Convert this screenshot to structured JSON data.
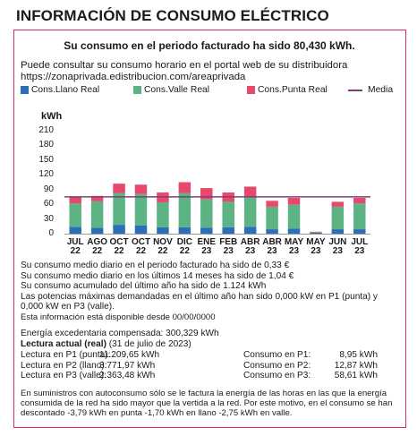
{
  "title": "INFORMACIÓN DE CONSUMO ELÉCTRICO",
  "headline": "Su consumo en el periodo facturado ha sido 80,430 kWh.",
  "portal_line1": "Puede consultar su consumo horario en el portal web de su distribuidora",
  "portal_line2": "https://zonaprivada.edistribucion.com/areaprivada",
  "colors": {
    "llano": "#2a6fb8",
    "valle": "#5eb384",
    "punta": "#e8486b",
    "media": "#7b3e7e",
    "frame": "#e0287a"
  },
  "chart_data": {
    "type": "bar",
    "stacked": true,
    "ylabel": "kWh",
    "ylim": [
      0,
      210
    ],
    "yticks": [
      0,
      30,
      60,
      90,
      120,
      150,
      180,
      210
    ],
    "categories": [
      [
        "JUL",
        "22"
      ],
      [
        "AGO",
        "22"
      ],
      [
        "OCT",
        "22"
      ],
      [
        "OCT",
        "22"
      ],
      [
        "NOV",
        "22"
      ],
      [
        "DIC",
        "22"
      ],
      [
        "ENE",
        "23"
      ],
      [
        "FEB",
        "23"
      ],
      [
        "ABR",
        "23"
      ],
      [
        "ABR",
        "23"
      ],
      [
        "MAY",
        "23"
      ],
      [
        "MAY",
        "23"
      ],
      [
        "JUN",
        "23"
      ],
      [
        "JUL",
        "23"
      ]
    ],
    "legend": [
      "Cons.Llano Real",
      "Cons.Valle Real",
      "Cons.Punta Real",
      "Media"
    ],
    "series": [
      {
        "name": "Cons.Llano Real",
        "values": [
          14,
          12,
          18,
          17,
          13,
          13,
          12,
          13,
          14,
          9,
          10,
          2,
          9,
          9
        ]
      },
      {
        "name": "Cons.Valle Real",
        "values": [
          48,
          54,
          65,
          64,
          51,
          70,
          58,
          52,
          60,
          46,
          49,
          1,
          46,
          53
        ]
      },
      {
        "name": "Cons.Punta Real",
        "values": [
          12,
          11,
          19,
          19,
          20,
          22,
          23,
          19,
          22,
          12,
          14,
          1,
          10,
          11
        ]
      }
    ],
    "media": 75
  },
  "info": {
    "line1": "Su consumo medio diario en el periodo facturado ha sido de 0,33 €",
    "line2": "Su consumo medio diario en los últimos 14 meses ha sido de 1,04 €",
    "line3": "Su consumo acumulado del último año ha sido de 1.124 kWh",
    "line4": "Las potencias máximas demandadas en el último año han sido 0,000 kW en P1 (punta) y",
    "line5": "0,000 kW en P3 (valle).",
    "line6": "Esta información está disponible desde 00/00/0000",
    "line7": "Energía excedentaria compensada: 300,329 kWh"
  },
  "lectura": {
    "title": "Lectura actual (real)",
    "date": " (31 de julio de 2023)",
    "rows": [
      {
        "label": "Lectura en P1 (punta):",
        "value": "11.209,65 kWh",
        "cons_label": "Consumo en P1:",
        "cons_value": "8,95 kWh"
      },
      {
        "label": "Lectura en P2 (llano):",
        "value": "3.771,97 kWh",
        "cons_label": "Consumo en P2:",
        "cons_value": "12,87 kWh"
      },
      {
        "label": "Lectura en P3 (valle):",
        "value": "2.363,48 kWh",
        "cons_label": "Consumo en P3:",
        "cons_value": "58,61 kWh"
      }
    ]
  },
  "footer": "En suministros con autoconsumo sólo se le factura la energía de las horas en las que la energía consumida de la red ha sido mayor que la vertida a la red. Por este motivo, en el consumo se han descontado -3,79 kWh en punta -1,70 kWh en llano -2,75 kWh en valle."
}
